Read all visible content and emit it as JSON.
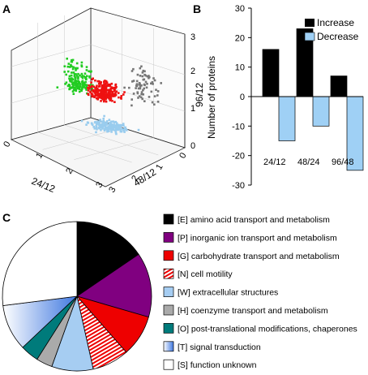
{
  "panels": {
    "a": "A",
    "b": "B",
    "c": "C"
  },
  "chart_data": [
    {
      "panel": "A",
      "type": "scatter",
      "dimensions": 3,
      "axes": {
        "x": {
          "label": "24/12",
          "ticks": [
            "0",
            "1",
            "2",
            "3"
          ],
          "range": [
            0,
            3
          ]
        },
        "y": {
          "label": "48/12",
          "ticks": [
            "0",
            "1",
            "2",
            "3"
          ],
          "range": [
            0,
            3
          ]
        },
        "z": {
          "label": "96/12",
          "ticks": [
            "0",
            "1",
            "2",
            "3"
          ],
          "range": [
            0,
            3
          ]
        }
      },
      "series_colors": [
        "#22cc22",
        "#ee1111",
        "#777777",
        "#99ccee"
      ],
      "grid": true
    },
    {
      "panel": "B",
      "type": "bar",
      "categories": [
        "24/12",
        "48/24",
        "96/48"
      ],
      "series": [
        {
          "name": "Increase",
          "color": "#000000",
          "values": [
            16,
            23,
            7
          ]
        },
        {
          "name": "Decrease",
          "color": "#9fd0f5",
          "values": [
            -15,
            -10,
            -25
          ]
        }
      ],
      "ylabel": "Number of proteins",
      "ylim": [
        -30,
        30
      ],
      "yticks": [
        "-30",
        "-20",
        "-10",
        "0",
        "10",
        "20",
        "30"
      ],
      "legend": "top-right"
    },
    {
      "panel": "C",
      "type": "pie",
      "slices": [
        {
          "label": "[E] amino acid transport and metabolism",
          "value": 15.5,
          "color": "#000000",
          "fill": "solid"
        },
        {
          "label": "[P] inorganic ion transport and metabolism",
          "value": 14,
          "color": "#800080",
          "fill": "solid"
        },
        {
          "label": "[G] carbohydrate  transport and metabolism",
          "value": 9,
          "color": "#ee0000",
          "fill": "solid"
        },
        {
          "label": "[N] cell motility",
          "value": 8,
          "color": "#ee0000",
          "fill": "stripes"
        },
        {
          "label": "[W] extracellular structures",
          "value": 9,
          "color": "#a6cdf2",
          "fill": "solid"
        },
        {
          "label": "[H] coenzyme transport and metabolism",
          "value": 3.5,
          "color": "#aaaaaa",
          "fill": "solid"
        },
        {
          "label": "[O] post-translational modifications, chaperones",
          "value": 4,
          "color": "#007b7b",
          "fill": "solid"
        },
        {
          "label": "[T] signal transduction",
          "value": 10,
          "color": "#5b8ee6",
          "fill": "gradient"
        },
        {
          "label": "[S] function unknown",
          "value": 27,
          "color": "#ffffff",
          "fill": "solid"
        }
      ],
      "legend": "right"
    }
  ]
}
